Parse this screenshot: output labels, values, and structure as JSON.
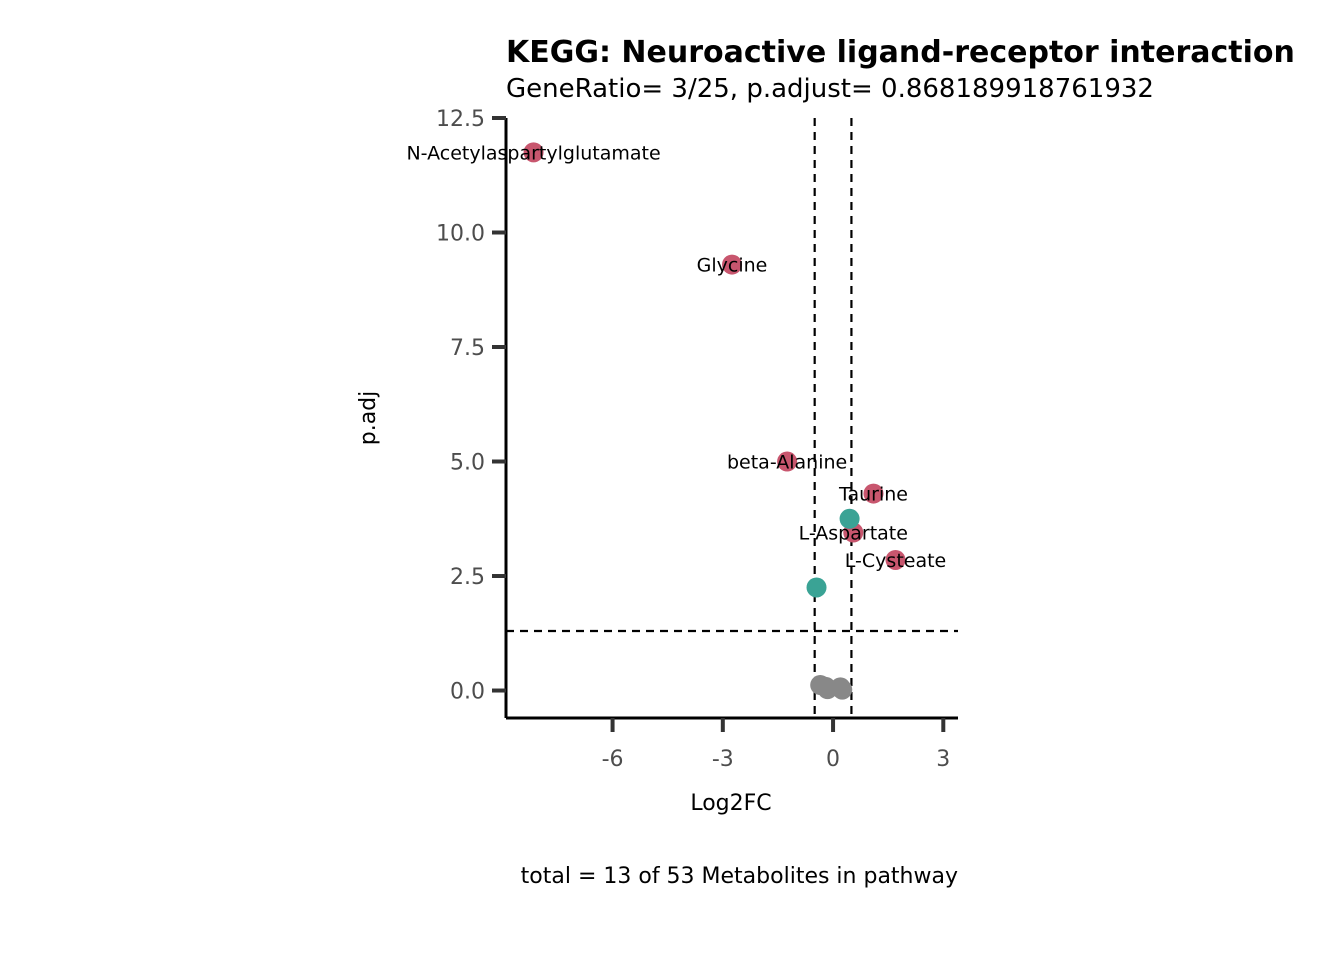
{
  "chart_data": {
    "type": "scatter",
    "title": "KEGG: Neuroactive ligand-receptor interaction",
    "subtitle": "GeneRatio= 3/25, p.adjust= 0.868189918761932",
    "xlabel": "Log2FC",
    "ylabel": "p.adj",
    "caption": "total = 13 of 53 Metabolites in pathway",
    "xlim": [
      -8.9,
      3.4
    ],
    "ylim": [
      -0.6,
      12.5
    ],
    "x_ticks": [
      -6,
      -3,
      0,
      3
    ],
    "x_tick_labels": [
      "-6",
      "-3",
      "0",
      "3"
    ],
    "y_ticks": [
      0,
      2.5,
      5,
      7.5,
      10,
      12.5
    ],
    "y_tick_labels": [
      "0.0",
      "2.5",
      "5.0",
      "7.5",
      "10.0",
      "12.5"
    ],
    "thresholds": {
      "x": [
        -0.5,
        0.5
      ],
      "y": 1.3
    },
    "grid": false,
    "legend": "none",
    "colors": {
      "red": "#c8566e",
      "teal": "#3aa395",
      "grey": "#888888"
    },
    "points": [
      {
        "label": "N-Acetylaspartylglutamate",
        "x": -8.15,
        "y": 11.75,
        "color": "red"
      },
      {
        "label": "Glycine",
        "x": -2.75,
        "y": 9.3,
        "color": "red"
      },
      {
        "label": "beta-Alanine",
        "x": -1.25,
        "y": 5.0,
        "color": "red"
      },
      {
        "label": "Taurine",
        "x": 1.1,
        "y": 4.3,
        "color": "red"
      },
      {
        "label": "L-Aspartate",
        "x": 0.55,
        "y": 3.45,
        "color": "red"
      },
      {
        "label": "L-Cysteate",
        "x": 1.7,
        "y": 2.85,
        "color": "red"
      },
      {
        "label": "",
        "x": 0.45,
        "y": 3.75,
        "color": "teal"
      },
      {
        "label": "",
        "x": -0.45,
        "y": 2.25,
        "color": "teal"
      },
      {
        "label": "",
        "x": -0.35,
        "y": 0.12,
        "color": "grey"
      },
      {
        "label": "",
        "x": -0.2,
        "y": 0.08,
        "color": "grey"
      },
      {
        "label": "",
        "x": -0.15,
        "y": 0.03,
        "color": "grey"
      },
      {
        "label": "",
        "x": 0.2,
        "y": 0.07,
        "color": "grey"
      },
      {
        "label": "",
        "x": 0.25,
        "y": 0.02,
        "color": "grey"
      }
    ]
  }
}
